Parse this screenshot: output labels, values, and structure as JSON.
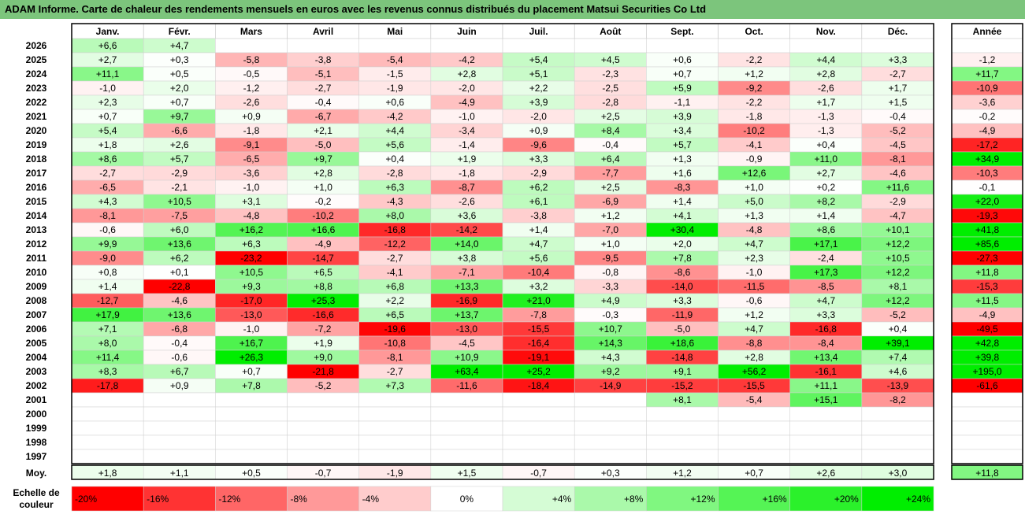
{
  "title": "ADAM Informe. Carte de chaleur des rendements mensuels en euros avec les revenus connus distribués du placement Matsui Securities Co Ltd",
  "chart_data": {
    "type": "heatmap",
    "months": [
      "Janv.",
      "Févr.",
      "Mars",
      "Avril",
      "Mai",
      "Juin",
      "Juil.",
      "Août",
      "Sept.",
      "Oct.",
      "Nov.",
      "Déc."
    ],
    "year_header": "Année",
    "rows": [
      {
        "year": "2026",
        "values": [
          "+6,6",
          "+4,7",
          "",
          "",
          "",
          "",
          "",
          "",
          "",
          "",
          "",
          ""
        ],
        "annual": ""
      },
      {
        "year": "2025",
        "values": [
          "+2,7",
          "+0,3",
          "-5,8",
          "-3,8",
          "-5,4",
          "-4,2",
          "+5,4",
          "+4,5",
          "+0,6",
          "-2,2",
          "+4,4",
          "+3,3"
        ],
        "annual": "-1,2"
      },
      {
        "year": "2024",
        "values": [
          "+11,1",
          "+0,5",
          "-0,5",
          "-5,1",
          "-1,5",
          "+2,8",
          "+5,1",
          "-2,3",
          "+0,7",
          "+1,2",
          "+2,8",
          "-2,7"
        ],
        "annual": "+11,7"
      },
      {
        "year": "2023",
        "values": [
          "-1,0",
          "+2,0",
          "-1,2",
          "-2,7",
          "-1,9",
          "-2,0",
          "+2,2",
          "-2,5",
          "+5,9",
          "-9,2",
          "-2,6",
          "+1,7"
        ],
        "annual": "-10,9"
      },
      {
        "year": "2022",
        "values": [
          "+2,3",
          "+0,7",
          "-2,6",
          "-0,4",
          "+0,6",
          "-4,9",
          "+3,9",
          "-2,8",
          "-1,1",
          "-2,2",
          "+1,7",
          "+1,5"
        ],
        "annual": "-3,6"
      },
      {
        "year": "2021",
        "values": [
          "+0,7",
          "+9,7",
          "+0,9",
          "-6,7",
          "-4,2",
          "-1,0",
          "-2,0",
          "+2,5",
          "+3,9",
          "-1,8",
          "-1,3",
          "-0,4"
        ],
        "annual": "-0,2"
      },
      {
        "year": "2020",
        "values": [
          "+5,4",
          "-6,6",
          "-1,8",
          "+2,1",
          "+4,4",
          "-3,4",
          "+0,9",
          "+8,4",
          "+3,4",
          "-10,2",
          "-1,3",
          "-5,2"
        ],
        "annual": "-4,9"
      },
      {
        "year": "2019",
        "values": [
          "+1,8",
          "+2,6",
          "-9,1",
          "-5,0",
          "+5,6",
          "-1,4",
          "-9,6",
          "-0,4",
          "+5,7",
          "-4,1",
          "+0,4",
          "-4,5"
        ],
        "annual": "-17,2"
      },
      {
        "year": "2018",
        "values": [
          "+8,6",
          "+5,7",
          "-6,5",
          "+9,7",
          "+0,4",
          "+1,9",
          "+3,3",
          "+6,4",
          "+1,3",
          "-0,9",
          "+11,0",
          "-8,1"
        ],
        "annual": "+34,9"
      },
      {
        "year": "2017",
        "values": [
          "-2,7",
          "-2,9",
          "-3,6",
          "+2,8",
          "-2,8",
          "-1,8",
          "-2,9",
          "-7,7",
          "+1,6",
          "+12,6",
          "+2,7",
          "-4,6"
        ],
        "annual": "-10,3"
      },
      {
        "year": "2016",
        "values": [
          "-6,5",
          "-2,1",
          "-1,0",
          "+1,0",
          "+6,3",
          "-8,7",
          "+6,2",
          "+2,5",
          "-8,3",
          "+1,0",
          "+0,2",
          "+11,6"
        ],
        "annual": "-0,1"
      },
      {
        "year": "2015",
        "values": [
          "+4,3",
          "+10,5",
          "+3,1",
          "-0,2",
          "-4,3",
          "-2,6",
          "+6,1",
          "-6,9",
          "+1,4",
          "+5,0",
          "+8,2",
          "-2,9"
        ],
        "annual": "+22,0"
      },
      {
        "year": "2014",
        "values": [
          "-8,1",
          "-7,5",
          "-4,8",
          "-10,2",
          "+8,0",
          "+3,6",
          "-3,8",
          "+1,2",
          "+4,1",
          "+1,3",
          "+1,4",
          "-4,7"
        ],
        "annual": "-19,3"
      },
      {
        "year": "2013",
        "values": [
          "-0,6",
          "+6,0",
          "+16,2",
          "+16,6",
          "-16,8",
          "-14,2",
          "+1,4",
          "-7,0",
          "+30,4",
          "-4,8",
          "+8,6",
          "+10,1"
        ],
        "annual": "+41,8"
      },
      {
        "year": "2012",
        "values": [
          "+9,9",
          "+13,6",
          "+6,3",
          "-4,9",
          "-12,2",
          "+14,0",
          "+4,7",
          "+1,0",
          "+2,0",
          "+4,7",
          "+17,1",
          "+12,2"
        ],
        "annual": "+85,6"
      },
      {
        "year": "2011",
        "values": [
          "-9,0",
          "+6,2",
          "-23,2",
          "-14,7",
          "-2,7",
          "+3,8",
          "+5,6",
          "-9,5",
          "+7,8",
          "+2,3",
          "-2,4",
          "+10,5"
        ],
        "annual": "-27,3"
      },
      {
        "year": "2010",
        "values": [
          "+0,8",
          "+0,1",
          "+10,5",
          "+6,5",
          "-4,1",
          "-7,1",
          "-10,4",
          "-0,8",
          "-8,6",
          "-1,0",
          "+17,3",
          "+12,2"
        ],
        "annual": "+11,8"
      },
      {
        "year": "2009",
        "values": [
          "+1,4",
          "-22,8",
          "+9,3",
          "+8,8",
          "+6,8",
          "+13,3",
          "+3,2",
          "-3,3",
          "-14,0",
          "-11,5",
          "-8,5",
          "+8,1"
        ],
        "annual": "-15,3"
      },
      {
        "year": "2008",
        "values": [
          "-12,7",
          "-4,6",
          "-17,0",
          "+25,3",
          "+2,2",
          "-16,9",
          "+21,0",
          "+4,9",
          "+3,3",
          "-0,6",
          "+4,7",
          "+12,2"
        ],
        "annual": "+11,5"
      },
      {
        "year": "2007",
        "values": [
          "+17,9",
          "+13,6",
          "-13,0",
          "-16,6",
          "+6,5",
          "+13,7",
          "-7,8",
          "-0,3",
          "-11,9",
          "+1,2",
          "+3,3",
          "-5,2"
        ],
        "annual": "-4,9"
      },
      {
        "year": "2006",
        "values": [
          "+7,1",
          "-6,8",
          "-1,0",
          "-7,2",
          "-19,6",
          "-13,0",
          "-15,5",
          "+10,7",
          "-5,0",
          "+4,7",
          "-16,8",
          "+0,4"
        ],
        "annual": "-49,5"
      },
      {
        "year": "2005",
        "values": [
          "+8,0",
          "-0,4",
          "+16,7",
          "+1,9",
          "-10,8",
          "-4,5",
          "-16,4",
          "+14,3",
          "+18,6",
          "-8,8",
          "-8,4",
          "+39,1"
        ],
        "annual": "+42,8"
      },
      {
        "year": "2004",
        "values": [
          "+11,4",
          "-0,6",
          "+26,3",
          "+9,0",
          "-8,1",
          "+10,9",
          "-19,1",
          "+4,3",
          "-14,8",
          "+2,8",
          "+13,4",
          "+7,4"
        ],
        "annual": "+39,8"
      },
      {
        "year": "2003",
        "values": [
          "+8,3",
          "+6,7",
          "+0,7",
          "-21,8",
          "-2,7",
          "+63,4",
          "+25,2",
          "+9,2",
          "+9,1",
          "+56,2",
          "-16,1",
          "+4,6"
        ],
        "annual": "+195,0"
      },
      {
        "year": "2002",
        "values": [
          "-17,8",
          "+0,9",
          "+7,8",
          "-5,2",
          "+7,3",
          "-11,6",
          "-18,4",
          "-14,9",
          "-15,2",
          "-15,5",
          "+11,1",
          "-13,9"
        ],
        "annual": "-61,6"
      },
      {
        "year": "2001",
        "values": [
          "",
          "",
          "",
          "",
          "",
          "",
          "",
          "",
          "+8,1",
          "-5,4",
          "+15,1",
          "-8,2"
        ],
        "annual": ""
      },
      {
        "year": "2000",
        "values": [
          "",
          "",
          "",
          "",
          "",
          "",
          "",
          "",
          "",
          "",
          "",
          ""
        ],
        "annual": ""
      },
      {
        "year": "1999",
        "values": [
          "",
          "",
          "",
          "",
          "",
          "",
          "",
          "",
          "",
          "",
          "",
          ""
        ],
        "annual": ""
      },
      {
        "year": "1998",
        "values": [
          "",
          "",
          "",
          "",
          "",
          "",
          "",
          "",
          "",
          "",
          "",
          ""
        ],
        "annual": ""
      },
      {
        "year": "1997",
        "values": [
          "",
          "",
          "",
          "",
          "",
          "",
          "",
          "",
          "",
          "",
          "",
          ""
        ],
        "annual": ""
      }
    ],
    "average": {
      "label": "Moy.",
      "values": [
        "+1,8",
        "+1,1",
        "+0,5",
        "-0,7",
        "-1,9",
        "+1,5",
        "-0,7",
        "+0,3",
        "+1,2",
        "+0,7",
        "+2,6",
        "+3,0"
      ],
      "annual": "+11,8"
    },
    "scale": {
      "label_line1": "Echelle de",
      "label_line2": "couleur",
      "items": [
        {
          "label": "-20%",
          "value": -20
        },
        {
          "label": "-16%",
          "value": -16
        },
        {
          "label": "-12%",
          "value": -12
        },
        {
          "label": "-8%",
          "value": -8
        },
        {
          "label": "-4%",
          "value": -4
        },
        {
          "label": "0%",
          "value": 0
        },
        {
          "label": "+4%",
          "value": 4
        },
        {
          "label": "+8%",
          "value": 8
        },
        {
          "label": "+12%",
          "value": 12
        },
        {
          "label": "+16%",
          "value": 16
        },
        {
          "label": "+20%",
          "value": 20
        },
        {
          "label": "+24%",
          "value": 24
        }
      ]
    },
    "colors": {
      "negative": "#ff0000",
      "positive": "#00ee00",
      "neutral": "#ffffff",
      "title_bar": "#7cc57c"
    }
  }
}
